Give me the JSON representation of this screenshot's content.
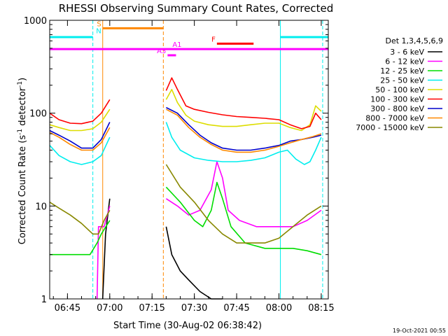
{
  "chart_data": {
    "type": "line",
    "title": "RHESSI Observing Summary Count Rates, Corrected",
    "xlabel": "Start Time (30-Aug-02 06:38:42)",
    "ylabel": "Corrected Count Rate (s",
    "ylabel_sup1": "-1",
    "ylabel_mid": " detector",
    "ylabel_sup2": "-1",
    "ylabel_end": ")",
    "timestamp": "19-Oct-2021 00:55",
    "y_scale": "log",
    "ylim": [
      1,
      1000
    ],
    "xlim": [
      "06:38:42",
      "08:17:30"
    ],
    "x_ticks": [
      "06:45",
      "07:00",
      "07:15",
      "07:30",
      "07:45",
      "08:00",
      "08:15"
    ],
    "y_ticks": [
      "1",
      "10",
      "100",
      "1000"
    ],
    "legend_title": "Det 1,3,4,5,6,9",
    "legend_position": "right",
    "series": [
      {
        "name": "3 - 6 keV",
        "color": "#000000",
        "segments": [
          [
            [
              "06:57:30",
              1.0
            ],
            [
              "06:58:30",
              5.0
            ],
            [
              "06:59:30",
              9.0
            ],
            [
              "07:00:00",
              12.0
            ]
          ],
          [
            [
              "07:20:00",
              6.0
            ],
            [
              "07:22:00",
              3.0
            ],
            [
              "07:25:00",
              2.0
            ],
            [
              "07:28:00",
              1.6
            ],
            [
              "07:32:00",
              1.2
            ],
            [
              "07:36:00",
              1.0
            ],
            [
              "07:40:00",
              1.0
            ]
          ]
        ]
      },
      {
        "name": "6 - 12 keV",
        "color": "#ff00ff",
        "segments": [
          [
            [
              "06:55:30",
              1.0
            ],
            [
              "06:56:00",
              6.0
            ],
            [
              "06:58:00",
              6.0
            ],
            [
              "07:00:00",
              10.0
            ]
          ],
          [
            [
              "07:20:00",
              12.0
            ],
            [
              "07:24:00",
              10.0
            ],
            [
              "07:28:00",
              8.0
            ],
            [
              "07:32:00",
              9.0
            ],
            [
              "07:36:00",
              15.0
            ],
            [
              "07:38:00",
              30.0
            ],
            [
              "07:40:00",
              20.0
            ],
            [
              "07:42:00",
              9.0
            ],
            [
              "07:46:00",
              7.0
            ],
            [
              "07:52:00",
              6.0
            ],
            [
              "08:00:00",
              6.0
            ],
            [
              "08:05:00",
              6.0
            ],
            [
              "08:10:00",
              7.0
            ],
            [
              "08:15:00",
              9.0
            ]
          ]
        ]
      },
      {
        "name": "12 - 25 keV",
        "color": "#00dd00",
        "segments": [
          [
            [
              "06:38:42",
              3.0
            ],
            [
              "06:48:00",
              3.0
            ],
            [
              "06:53:00",
              3.0
            ],
            [
              "06:55:30",
              4.0
            ],
            [
              "06:57:00",
              5.0
            ],
            [
              "07:00:00",
              7.0
            ]
          ],
          [
            [
              "07:20:00",
              16.0
            ],
            [
              "07:25:00",
              11.0
            ],
            [
              "07:30:00",
              7.0
            ],
            [
              "07:33:00",
              6.0
            ],
            [
              "07:36:00",
              9.0
            ],
            [
              "07:38:00",
              18.0
            ],
            [
              "07:40:00",
              12.0
            ],
            [
              "07:43:00",
              6.0
            ],
            [
              "07:48:00",
              4.0
            ],
            [
              "07:55:00",
              3.5
            ],
            [
              "08:00:00",
              3.5
            ],
            [
              "08:05:00",
              3.5
            ],
            [
              "08:10:00",
              3.3
            ],
            [
              "08:15:00",
              3.0
            ]
          ]
        ]
      },
      {
        "name": "25 - 50 keV",
        "color": "#00eeee",
        "segments": [
          [
            [
              "06:38:42",
              45.0
            ],
            [
              "06:42:00",
              35.0
            ],
            [
              "06:46:00",
              30.0
            ],
            [
              "06:50:00",
              28.0
            ],
            [
              "06:54:00",
              30.0
            ],
            [
              "06:57:00",
              35.0
            ],
            [
              "07:00:00",
              55.0
            ]
          ],
          [
            [
              "07:20:00",
              80.0
            ],
            [
              "07:22:00",
              55.0
            ],
            [
              "07:25:00",
              40.0
            ],
            [
              "07:30:00",
              33.0
            ],
            [
              "07:35:00",
              31.0
            ],
            [
              "07:40:00",
              30.0
            ],
            [
              "07:45:00",
              30.0
            ],
            [
              "07:50:00",
              31.0
            ],
            [
              "07:55:00",
              33.0
            ],
            [
              "08:00:00",
              38.0
            ],
            [
              "08:03:00",
              40.0
            ],
            [
              "08:06:00",
              32.0
            ],
            [
              "08:09:00",
              28.0
            ],
            [
              "08:11:00",
              30.0
            ],
            [
              "08:13:00",
              40.0
            ],
            [
              "08:15:00",
              55.0
            ]
          ]
        ]
      },
      {
        "name": "50 - 100 keV",
        "color": "#dddd00",
        "segments": [
          [
            [
              "06:38:42",
              75.0
            ],
            [
              "06:42:00",
              70.0
            ],
            [
              "06:46:00",
              65.0
            ],
            [
              "06:50:00",
              65.0
            ],
            [
              "06:54:00",
              68.0
            ],
            [
              "06:57:00",
              80.0
            ],
            [
              "07:00:00",
              110.0
            ]
          ],
          [
            [
              "07:20:00",
              140.0
            ],
            [
              "07:22:00",
              180.0
            ],
            [
              "07:24:00",
              130.0
            ],
            [
              "07:27:00",
              95.0
            ],
            [
              "07:30:00",
              82.0
            ],
            [
              "07:35:00",
              75.0
            ],
            [
              "07:40:00",
              72.0
            ],
            [
              "07:45:00",
              72.0
            ],
            [
              "07:50:00",
              75.0
            ],
            [
              "07:55:00",
              78.0
            ],
            [
              "08:00:00",
              78.0
            ],
            [
              "08:04:00",
              70.0
            ],
            [
              "08:08:00",
              65.0
            ],
            [
              "08:11:00",
              75.0
            ],
            [
              "08:13:00",
              120.0
            ],
            [
              "08:15:00",
              105.0
            ]
          ]
        ]
      },
      {
        "name": "100 - 300 keV",
        "color": "#ff0000",
        "segments": [
          [
            [
              "06:38:42",
              100.0
            ],
            [
              "06:42:00",
              85.0
            ],
            [
              "06:46:00",
              78.0
            ],
            [
              "06:50:00",
              77.0
            ],
            [
              "06:54:00",
              82.0
            ],
            [
              "06:57:00",
              100.0
            ],
            [
              "07:00:00",
              140.0
            ]
          ],
          [
            [
              "07:20:00",
              175.0
            ],
            [
              "07:22:00",
              240.0
            ],
            [
              "07:24:00",
              180.0
            ],
            [
              "07:27:00",
              120.0
            ],
            [
              "07:30:00",
              110.0
            ],
            [
              "07:35:00",
              102.0
            ],
            [
              "07:40:00",
              96.0
            ],
            [
              "07:45:00",
              92.0
            ],
            [
              "07:50:00",
              90.0
            ],
            [
              "07:55:00",
              88.0
            ],
            [
              "08:00:00",
              85.0
            ],
            [
              "08:04:00",
              75.0
            ],
            [
              "08:08:00",
              68.0
            ],
            [
              "08:11:00",
              72.0
            ],
            [
              "08:13:00",
              100.0
            ],
            [
              "08:15:00",
              85.0
            ]
          ]
        ]
      },
      {
        "name": "300 - 800 keV",
        "color": "#0000cc",
        "segments": [
          [
            [
              "06:38:42",
              65.0
            ],
            [
              "06:42:00",
              58.0
            ],
            [
              "06:46:00",
              50.0
            ],
            [
              "06:50:00",
              42.0
            ],
            [
              "06:54:00",
              42.0
            ],
            [
              "06:57:00",
              52.0
            ],
            [
              "07:00:00",
              80.0
            ]
          ],
          [
            [
              "07:20:00",
              115.0
            ],
            [
              "07:24:00",
              100.0
            ],
            [
              "07:28:00",
              75.0
            ],
            [
              "07:32:00",
              58.0
            ],
            [
              "07:36:00",
              48.0
            ],
            [
              "07:40:00",
              42.0
            ],
            [
              "07:45:00",
              40.0
            ],
            [
              "07:50:00",
              40.0
            ],
            [
              "07:55:00",
              42.0
            ],
            [
              "08:00:00",
              45.0
            ],
            [
              "08:04:00",
              50.0
            ],
            [
              "08:08:00",
              52.0
            ],
            [
              "08:12:00",
              55.0
            ],
            [
              "08:15:00",
              58.0
            ]
          ]
        ]
      },
      {
        "name": "800 - 7000 keV",
        "color": "#ff8800",
        "segments": [
          [
            [
              "06:38:42",
              62.0
            ],
            [
              "06:42:00",
              55.0
            ],
            [
              "06:46:00",
              46.0
            ],
            [
              "06:50:00",
              40.0
            ],
            [
              "06:54:00",
              40.0
            ],
            [
              "06:57:00",
              48.0
            ],
            [
              "07:00:00",
              70.0
            ]
          ],
          [
            [
              "07:20:00",
              110.0
            ],
            [
              "07:24:00",
              95.0
            ],
            [
              "07:28:00",
              70.0
            ],
            [
              "07:32:00",
              55.0
            ],
            [
              "07:36:00",
              46.0
            ],
            [
              "07:40:00",
              40.0
            ],
            [
              "07:45:00",
              38.0
            ],
            [
              "07:50:00",
              38.0
            ],
            [
              "07:55:00",
              40.0
            ],
            [
              "08:00:00",
              44.0
            ],
            [
              "08:04:00",
              48.0
            ],
            [
              "08:08:00",
              52.0
            ],
            [
              "08:12:00",
              56.0
            ],
            [
              "08:15:00",
              60.0
            ]
          ]
        ]
      },
      {
        "name": "7000 - 15000 keV",
        "color": "#888800",
        "segments": [
          [
            [
              "06:38:42",
              11.0
            ],
            [
              "06:42:00",
              9.5
            ],
            [
              "06:46:00",
              8.0
            ],
            [
              "06:50:00",
              6.5
            ],
            [
              "06:54:00",
              5.0
            ],
            [
              "06:56:00",
              5.0
            ],
            [
              "06:58:00",
              7.0
            ],
            [
              "07:00:00",
              9.0
            ]
          ],
          [
            [
              "07:20:00",
              28.0
            ],
            [
              "07:25:00",
              16.0
            ],
            [
              "07:30:00",
              11.0
            ],
            [
              "07:35:00",
              7.0
            ],
            [
              "07:40:00",
              5.0
            ],
            [
              "07:45:00",
              4.0
            ],
            [
              "07:50:00",
              4.0
            ],
            [
              "07:55:00",
              4.0
            ],
            [
              "08:00:00",
              4.5
            ],
            [
              "08:05:00",
              6.0
            ],
            [
              "08:10:00",
              8.0
            ],
            [
              "08:15:00",
              10.0
            ]
          ]
        ]
      }
    ],
    "vertical_lines": [
      {
        "time": "06:54:00",
        "color": "#00eeee",
        "style": "dashed"
      },
      {
        "time": "06:57:30",
        "color": "#ff8800",
        "style": "solid"
      },
      {
        "time": "07:19:00",
        "color": "#ff8800",
        "style": "dashed"
      },
      {
        "time": "08:00:30",
        "color": "#00eeee",
        "style": "solid"
      },
      {
        "time": "08:15:30",
        "color": "#00eeee",
        "style": "dashed"
      }
    ],
    "flag_bars": [
      {
        "label": "",
        "color": "#00eeee",
        "y": 660,
        "segments": [
          [
            "06:38:42",
            "06:54:00"
          ],
          [
            "08:00:30",
            "08:17:30"
          ]
        ]
      },
      {
        "label": "S",
        "color": "#ff8800",
        "y": 820,
        "segments": [
          [
            "06:57:30",
            "07:19:00"
          ]
        ]
      },
      {
        "label": "N",
        "color": "#00eeee",
        "y": 690,
        "segments": [
          [
            "06:57:30",
            "06:57:30"
          ]
        ]
      },
      {
        "label": "F",
        "color": "#ff0000",
        "y": 560,
        "segments": [
          [
            "07:38:00",
            "07:51:00"
          ]
        ]
      },
      {
        "label": "",
        "color": "#ff00ff",
        "y": 490,
        "segments": [
          [
            "06:38:42",
            "08:17:30"
          ]
        ]
      },
      {
        "label": "A1",
        "color": "#ff00ff",
        "y": 490,
        "segments": [
          [
            "07:26:00",
            "07:26:00"
          ]
        ]
      },
      {
        "label": "A3",
        "color": "#ff00ff",
        "y": 420,
        "segments": [
          [
            "07:20:30",
            "07:23:30"
          ]
        ]
      }
    ]
  }
}
